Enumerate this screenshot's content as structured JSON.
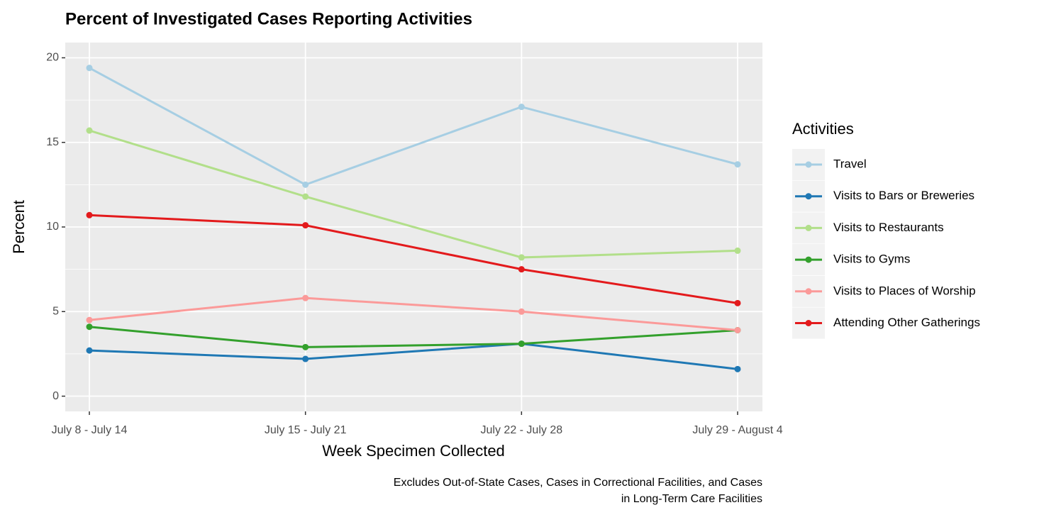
{
  "chart_data": {
    "type": "line",
    "title": "Percent of Investigated Cases Reporting Activities",
    "x_label": "Week Specimen Collected",
    "y_label": "Percent",
    "caption": [
      "Excludes Out-of-State Cases, Cases in Correctional Facilities, and Cases",
      "in Long-Term Care Facilities"
    ],
    "legend_title": "Activities",
    "legend_position": "right",
    "grid": true,
    "categories": [
      "July 8 - July 14",
      "July 15 - July 21",
      "July 22 - July 28",
      "July 29 - August 4"
    ],
    "ylim": [
      -0.9,
      20.9
    ],
    "yticks": [
      0,
      5,
      10,
      15,
      20
    ],
    "series": [
      {
        "name": "Travel",
        "color": "#a6cee3",
        "values": [
          19.4,
          12.5,
          17.1,
          13.7
        ]
      },
      {
        "name": "Visits to Bars or Breweries",
        "color": "#1f78b4",
        "values": [
          2.7,
          2.2,
          3.1,
          1.6
        ]
      },
      {
        "name": "Visits to Restaurants",
        "color": "#b2df8a",
        "values": [
          15.7,
          11.8,
          8.2,
          8.6
        ]
      },
      {
        "name": "Visits to Gyms",
        "color": "#33a02c",
        "values": [
          4.1,
          2.9,
          3.1,
          3.9
        ]
      },
      {
        "name": "Visits to Places of Worship",
        "color": "#fb9a99",
        "values": [
          4.5,
          5.8,
          5.0,
          3.9
        ]
      },
      {
        "name": "Attending Other Gatherings",
        "color": "#e31a1c",
        "values": [
          10.7,
          10.1,
          7.5,
          5.5
        ]
      }
    ]
  }
}
